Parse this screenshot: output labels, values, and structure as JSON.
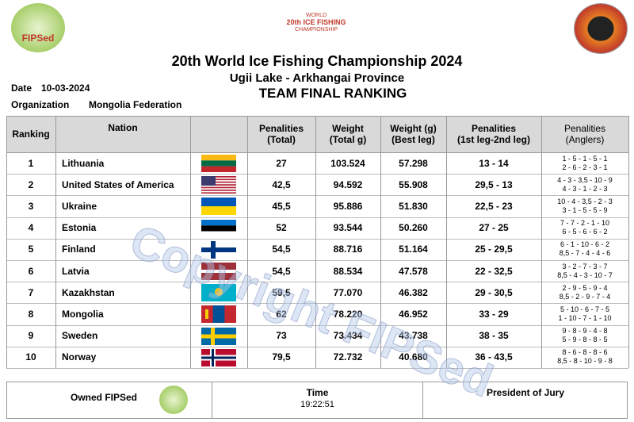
{
  "header": {
    "logo_left": "FIPSed",
    "logo_center": [
      "WORLD",
      "20th ICE FISHING",
      "CHAMPIONSHIP"
    ],
    "title": "20th World Ice Fishing Championship 2024",
    "subtitle": "Ugii Lake - Arkhangai Province",
    "heading": "TEAM FINAL RANKING",
    "date_label": "Date",
    "date": "10-03-2024",
    "org_label": "Organization",
    "org": "Mongolia Federation"
  },
  "watermark": "Copyright FIPSed",
  "table": {
    "columns": [
      [
        "Ranking"
      ],
      [
        "Nation"
      ],
      [
        "Penalities",
        "(Total)"
      ],
      [
        "Weight",
        "(Total g)"
      ],
      [
        "Weight (g)",
        "(Best leg)"
      ],
      [
        "Penalities",
        "(1st leg-2nd leg)"
      ],
      [
        "Penalities",
        "(Anglers)"
      ]
    ],
    "rows": [
      [
        "1",
        "Lithuania",
        "27",
        "103.524",
        "57.298",
        "13 - 14",
        [
          "1 - 5 - 1 - 5 - 1",
          "2 - 6 - 2 - 3 - 1"
        ]
      ],
      [
        "2",
        "United States of America",
        "42,5",
        "94.592",
        "55.908",
        "29,5 - 13",
        [
          "4 - 3 - 3,5 - 10 - 9",
          "4 - 3 - 1 - 2 - 3"
        ]
      ],
      [
        "3",
        "Ukraine",
        "45,5",
        "95.886",
        "51.830",
        "22,5 - 23",
        [
          "10 - 4 - 3,5 - 2 - 3",
          "3 - 1 - 5 - 5 - 9"
        ]
      ],
      [
        "4",
        "Estonia",
        "52",
        "93.544",
        "50.260",
        "27 - 25",
        [
          "7 - 7 - 2 - 1 - 10",
          "6 - 5 - 6 - 6 - 2"
        ]
      ],
      [
        "5",
        "Finland",
        "54,5",
        "88.716",
        "51.164",
        "25 - 29,5",
        [
          "6 - 1 - 10 - 6 - 2",
          "8,5 - 7 - 4 - 4 - 6"
        ]
      ],
      [
        "6",
        "Latvia",
        "54,5",
        "88.534",
        "47.578",
        "22 - 32,5",
        [
          "3 - 2 - 7 - 3 - 7",
          "8,5 - 4 - 3 - 10 - 7"
        ]
      ],
      [
        "7",
        "Kazakhstan",
        "59,5",
        "77.070",
        "46.382",
        "29 - 30,5",
        [
          "2 - 9 - 5 - 9 - 4",
          "8,5 - 2 - 9 - 7 - 4"
        ]
      ],
      [
        "8",
        "Mongolia",
        "62",
        "78.220",
        "46.952",
        "33 - 29",
        [
          "5 - 10 - 6 - 7 - 5",
          "1 - 10 - 7 - 1 - 10"
        ]
      ],
      [
        "9",
        "Sweden",
        "73",
        "73.434",
        "43.738",
        "38 - 35",
        [
          "9 - 8 - 9 - 4 - 8",
          "5 - 9 - 8 - 8 - 5"
        ]
      ],
      [
        "10",
        "Norway",
        "79,5",
        "72.732",
        "40.680",
        "36 - 43,5",
        [
          "8 - 6 - 8 - 8 - 6",
          "8,5 - 8 - 10 - 9 - 8"
        ]
      ]
    ]
  },
  "footer": {
    "owned": "Owned FIPSed",
    "time_label": "Time",
    "time": "19:22:51",
    "president": "President of Jury"
  }
}
